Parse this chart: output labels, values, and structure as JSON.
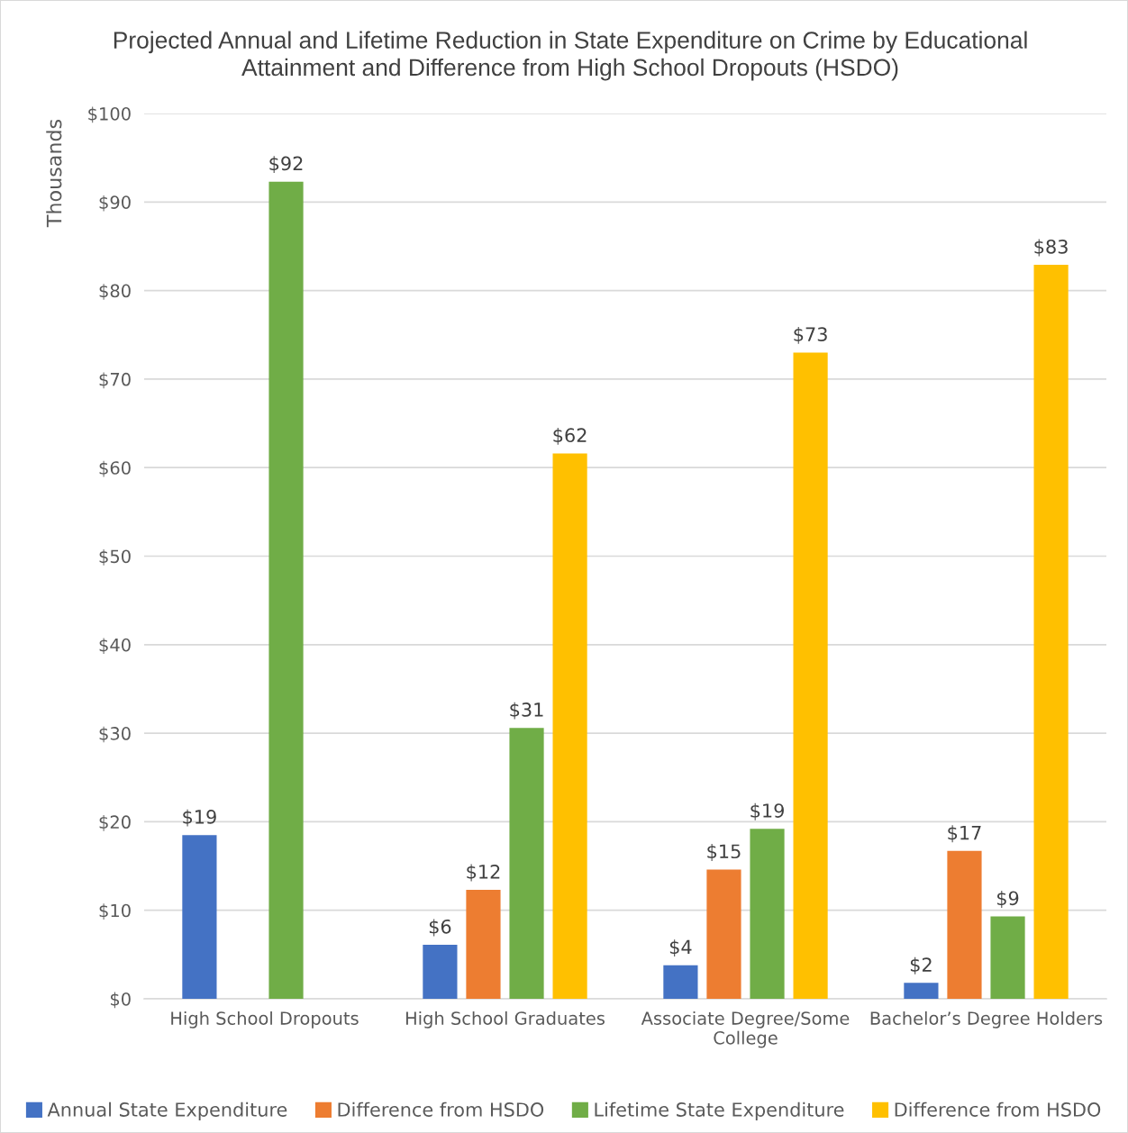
{
  "chart_data": {
    "type": "bar",
    "title": "Projected Annual and Lifetime Reduction in State Expenditure on Crime by Educational\nAttainment and Difference from High School Dropouts (HSDO)",
    "ylabel": "Thousands",
    "categories": [
      "High School Dropouts",
      "High School Graduates",
      "Associate Degree/Some College",
      "Bachelor’s Degree Holders"
    ],
    "series": [
      {
        "name": "Annual State Expenditure",
        "color": "#4472c4",
        "values": [
          18.5,
          6.1,
          3.8,
          1.8
        ],
        "value_labels": [
          "$19",
          "$6",
          "$4",
          "$2"
        ]
      },
      {
        "name": "Difference from HSDO",
        "color": "#ed7d31",
        "values": [
          null,
          12.3,
          14.6,
          16.7
        ],
        "value_labels": [
          null,
          "$12",
          "$15",
          "$17"
        ]
      },
      {
        "name": "Lifetime State Expenditure",
        "color": "#70ad47",
        "values": [
          92.3,
          30.6,
          19.2,
          9.3
        ],
        "value_labels": [
          "$92",
          "$31",
          "$19",
          "$9"
        ]
      },
      {
        "name": "Difference from HSDO",
        "color": "#ffc000",
        "values": [
          null,
          61.6,
          73.0,
          82.9
        ],
        "value_labels": [
          null,
          "$62",
          "$73",
          "$83"
        ]
      }
    ],
    "ylim": [
      0,
      100
    ],
    "yticks": [
      {
        "value": 0,
        "label": "$0"
      },
      {
        "value": 10,
        "label": "$10"
      },
      {
        "value": 20,
        "label": "$20"
      },
      {
        "value": 30,
        "label": "$30"
      },
      {
        "value": 40,
        "label": "$40"
      },
      {
        "value": 50,
        "label": "$50"
      },
      {
        "value": 60,
        "label": "$60"
      },
      {
        "value": 70,
        "label": "$70"
      },
      {
        "value": 80,
        "label": "$80"
      },
      {
        "value": 90,
        "label": "$90"
      },
      {
        "value": 100,
        "label": "$100"
      }
    ],
    "grid": "y",
    "legend": "bottom"
  }
}
